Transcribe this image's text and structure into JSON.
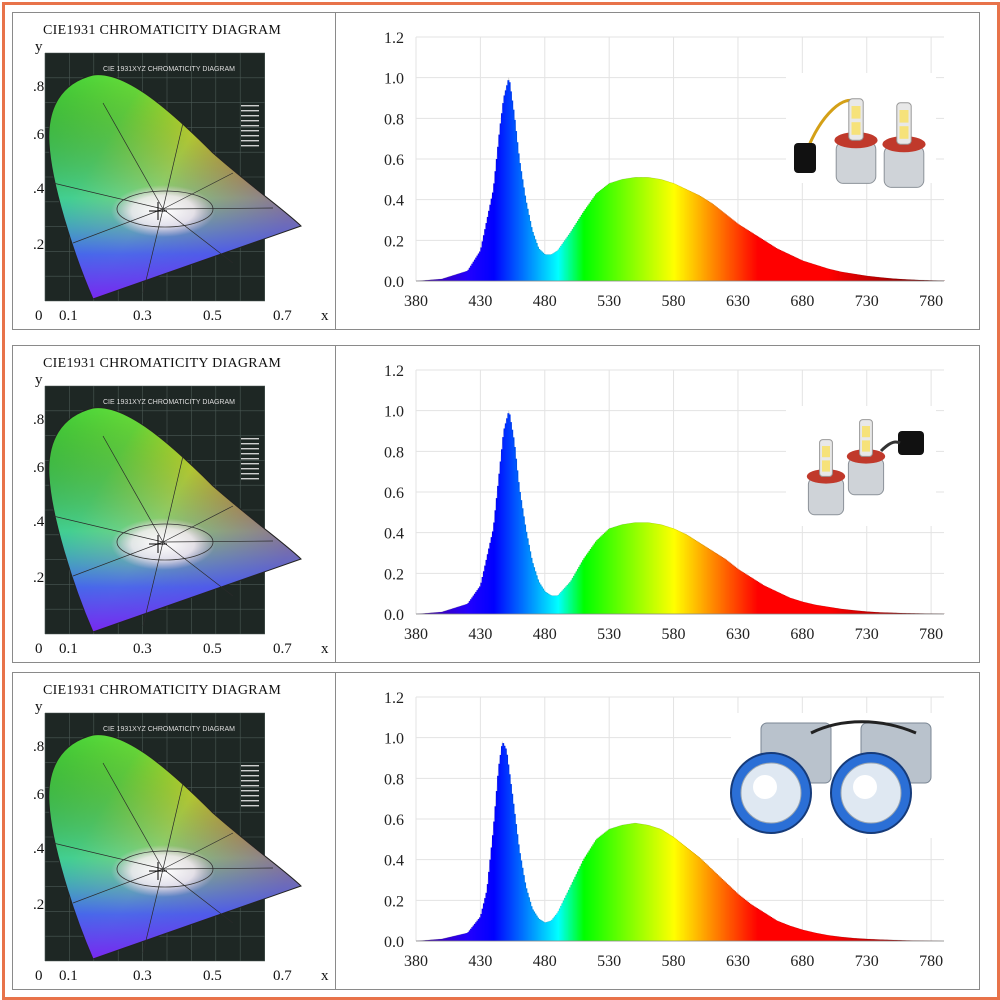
{
  "cie_title": "CIE1931 CHROMATICITY DIAGRAM",
  "cie_inner_title": "CIE 1931XYZ CHROMATICITY DIAGRAM",
  "cie_x_ticks": [
    "0",
    "0.1",
    "0.3",
    "0.5",
    "0.7",
    "x"
  ],
  "cie_y_ticks": [
    ".8",
    ".6",
    ".4",
    ".2"
  ],
  "cie_y_axis_label": "y",
  "colors": {
    "frame": "#e8734a",
    "border": "#8a8a8a",
    "cie_background": "#1e2724"
  },
  "product_images": [
    "led-headlight-bulbs-pair",
    "led-headlight-bulbs-pair",
    "bi-led-projector-lenses-pair"
  ],
  "chart_data": [
    {
      "type": "area",
      "x": [
        380,
        400,
        420,
        430,
        440,
        445,
        448,
        452,
        456,
        460,
        465,
        470,
        475,
        480,
        485,
        490,
        500,
        510,
        520,
        530,
        540,
        550,
        560,
        570,
        580,
        590,
        600,
        610,
        620,
        630,
        640,
        650,
        660,
        670,
        680,
        690,
        700,
        710,
        720,
        730,
        740,
        750,
        760,
        770,
        780,
        790
      ],
      "y": [
        0.0,
        0.01,
        0.05,
        0.15,
        0.45,
        0.75,
        0.9,
        1.0,
        0.82,
        0.6,
        0.4,
        0.25,
        0.16,
        0.13,
        0.13,
        0.15,
        0.24,
        0.34,
        0.43,
        0.48,
        0.5,
        0.51,
        0.51,
        0.5,
        0.48,
        0.45,
        0.42,
        0.38,
        0.33,
        0.28,
        0.24,
        0.2,
        0.16,
        0.13,
        0.1,
        0.08,
        0.06,
        0.045,
        0.035,
        0.025,
        0.018,
        0.012,
        0.008,
        0.005,
        0.003,
        0.002
      ],
      "xticks": [
        "380",
        "430",
        "480",
        "530",
        "580",
        "630",
        "680",
        "730",
        "780"
      ],
      "yticks": [
        "0.0",
        "0.2",
        "0.4",
        "0.6",
        "0.8",
        "1.0",
        "1.2"
      ],
      "xlim": [
        380,
        790
      ],
      "ylim": [
        0,
        1.2
      ],
      "grid": true
    },
    {
      "type": "area",
      "x": [
        380,
        400,
        420,
        430,
        440,
        445,
        448,
        452,
        456,
        460,
        465,
        470,
        475,
        480,
        485,
        490,
        500,
        510,
        520,
        530,
        540,
        550,
        560,
        570,
        580,
        590,
        600,
        610,
        620,
        630,
        640,
        650,
        660,
        670,
        680,
        690,
        700,
        710,
        720,
        730,
        740,
        750,
        760,
        770,
        780,
        790
      ],
      "y": [
        0.0,
        0.01,
        0.05,
        0.14,
        0.42,
        0.72,
        0.9,
        1.0,
        0.85,
        0.62,
        0.42,
        0.26,
        0.16,
        0.11,
        0.09,
        0.09,
        0.16,
        0.27,
        0.36,
        0.42,
        0.44,
        0.45,
        0.45,
        0.44,
        0.42,
        0.39,
        0.35,
        0.31,
        0.27,
        0.22,
        0.18,
        0.14,
        0.11,
        0.08,
        0.06,
        0.045,
        0.035,
        0.025,
        0.018,
        0.012,
        0.008,
        0.006,
        0.004,
        0.003,
        0.002,
        0.001
      ],
      "xticks": [
        "380",
        "430",
        "480",
        "530",
        "580",
        "630",
        "680",
        "730",
        "780"
      ],
      "yticks": [
        "0.0",
        "0.2",
        "0.4",
        "0.6",
        "0.8",
        "1.0",
        "1.2"
      ],
      "xlim": [
        380,
        790
      ],
      "ylim": [
        0,
        1.2
      ],
      "grid": true
    },
    {
      "type": "area",
      "x": [
        380,
        400,
        420,
        430,
        435,
        440,
        444,
        447,
        450,
        455,
        460,
        465,
        470,
        475,
        480,
        485,
        490,
        500,
        510,
        520,
        530,
        540,
        550,
        560,
        570,
        580,
        590,
        600,
        610,
        620,
        630,
        640,
        650,
        660,
        670,
        680,
        690,
        700,
        710,
        720,
        730,
        740,
        750,
        760,
        770,
        780,
        790
      ],
      "y": [
        0.0,
        0.01,
        0.04,
        0.12,
        0.25,
        0.55,
        0.85,
        0.98,
        0.94,
        0.7,
        0.45,
        0.27,
        0.16,
        0.11,
        0.09,
        0.1,
        0.14,
        0.27,
        0.4,
        0.5,
        0.55,
        0.57,
        0.58,
        0.57,
        0.55,
        0.51,
        0.46,
        0.41,
        0.35,
        0.29,
        0.23,
        0.18,
        0.14,
        0.1,
        0.075,
        0.055,
        0.04,
        0.028,
        0.02,
        0.014,
        0.01,
        0.007,
        0.005,
        0.003,
        0.002,
        0.001,
        0.0
      ],
      "xticks": [
        "380",
        "430",
        "480",
        "530",
        "580",
        "630",
        "680",
        "730",
        "780"
      ],
      "yticks": [
        "0.0",
        "0.2",
        "0.4",
        "0.6",
        "0.8",
        "1.0",
        "1.2"
      ],
      "xlim": [
        380,
        790
      ],
      "ylim": [
        0,
        1.2
      ],
      "grid": true
    }
  ]
}
